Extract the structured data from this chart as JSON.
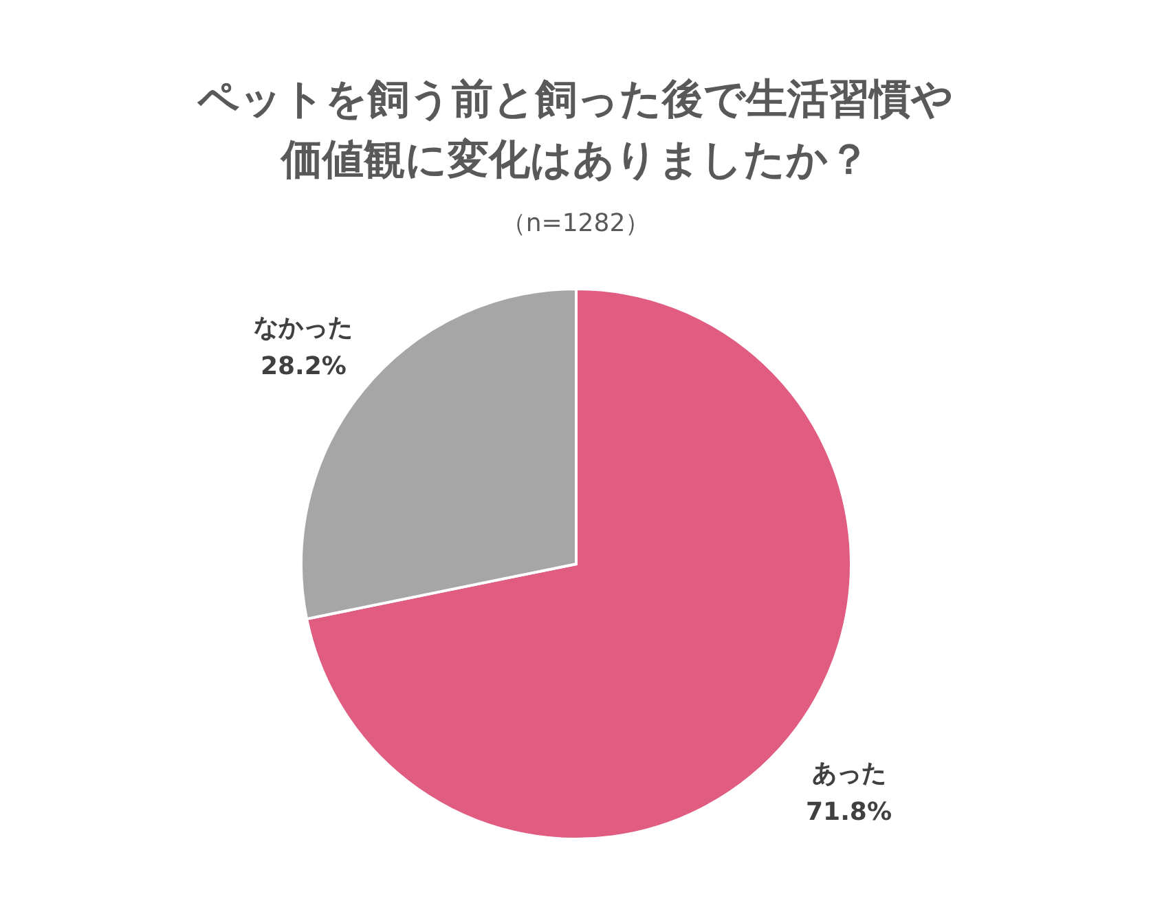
{
  "chart_data": {
    "type": "pie",
    "title": "ペットを飼う前と飼った後で生活習慣や価値観に変化はありましたか？",
    "subtitle": "（n=1282）",
    "categories": [
      "あった",
      "なかった"
    ],
    "values": [
      71.8,
      28.2
    ],
    "colors": [
      "#e05c80",
      "#a6a6a6"
    ],
    "value_labels": [
      "71.8%",
      "28.2%"
    ],
    "legend": false
  }
}
